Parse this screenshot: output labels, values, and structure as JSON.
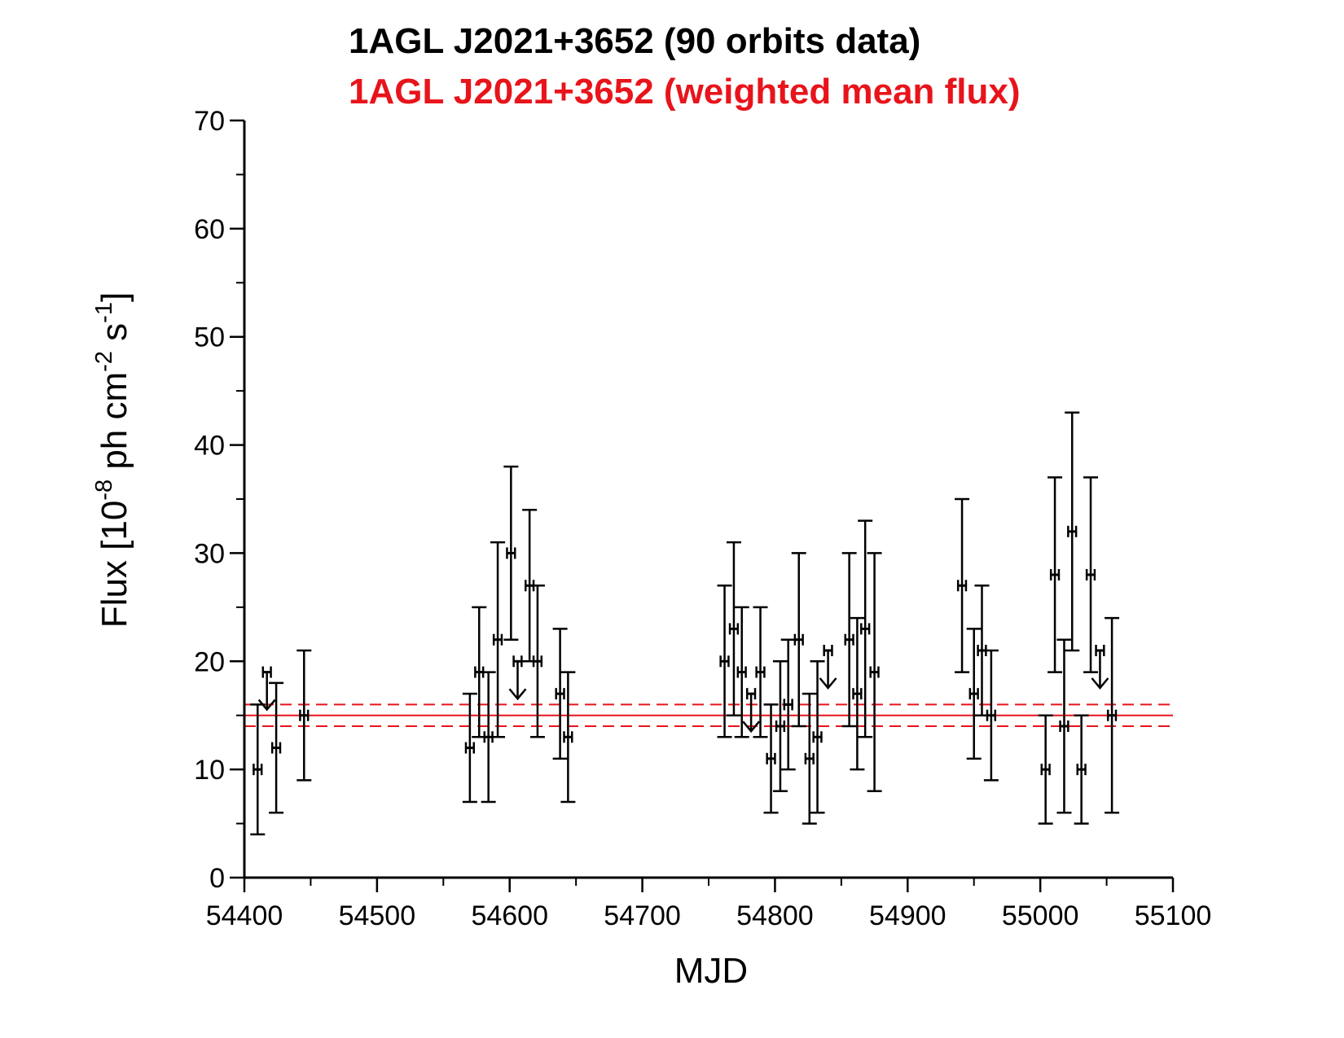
{
  "chart_data": {
    "type": "scatter",
    "title": "1AGL J2021+3652 (90 orbits data)",
    "subtitle": "1AGL J2021+3652 (weighted mean flux)",
    "xlabel": "MJD",
    "ylabel": {
      "prefix": "Flux [10",
      "exp1": "-8",
      "middle": " ph cm",
      "exp2": "-2",
      "middle2": " s",
      "exp3": "-1",
      "suffix": "]"
    },
    "xlim": [
      54400,
      55100
    ],
    "ylim": [
      0,
      70
    ],
    "x_ticks": [
      54400,
      54500,
      54600,
      54700,
      54800,
      54900,
      55000,
      55100
    ],
    "y_ticks": [
      0,
      10,
      20,
      30,
      40,
      50,
      60,
      70
    ],
    "colors": {
      "data": "#000000",
      "mean": "#e8141b",
      "title": "#000000",
      "subtitle": "#e8141b"
    },
    "mean_flux": {
      "value": 15,
      "lower": 14,
      "upper": 16
    },
    "series": [
      {
        "name": "1AGL J2021+3652 (90 orbits data)",
        "points": [
          {
            "x": 54410,
            "y": 10,
            "ylo": 4,
            "yhi": 16,
            "xerr": 3
          },
          {
            "x": 54424,
            "y": 12,
            "ylo": 6,
            "yhi": 18,
            "xerr": 3
          },
          {
            "x": 54445,
            "y": 15,
            "ylo": 9,
            "yhi": 21,
            "xerr": 3
          },
          {
            "x": 54570,
            "y": 12,
            "ylo": 7,
            "yhi": 17,
            "xerr": 3
          },
          {
            "x": 54577,
            "y": 19,
            "ylo": 13,
            "yhi": 25,
            "xerr": 3
          },
          {
            "x": 54584,
            "y": 13,
            "ylo": 7,
            "yhi": 19,
            "xerr": 3
          },
          {
            "x": 54591,
            "y": 22,
            "ylo": 13,
            "yhi": 31,
            "xerr": 3
          },
          {
            "x": 54601,
            "y": 30,
            "ylo": 22,
            "yhi": 38,
            "xerr": 3
          },
          {
            "x": 54615,
            "y": 27,
            "ylo": 20,
            "yhi": 34,
            "xerr": 3
          },
          {
            "x": 54621,
            "y": 20,
            "ylo": 13,
            "yhi": 27,
            "xerr": 3
          },
          {
            "x": 54638,
            "y": 17,
            "ylo": 11,
            "yhi": 23,
            "xerr": 3
          },
          {
            "x": 54644,
            "y": 13,
            "ylo": 7,
            "yhi": 19,
            "xerr": 3
          },
          {
            "x": 54762,
            "y": 20,
            "ylo": 13,
            "yhi": 27,
            "xerr": 3
          },
          {
            "x": 54769,
            "y": 23,
            "ylo": 15,
            "yhi": 31,
            "xerr": 3
          },
          {
            "x": 54775,
            "y": 19,
            "ylo": 13,
            "yhi": 25,
            "xerr": 3
          },
          {
            "x": 54789,
            "y": 19,
            "ylo": 13,
            "yhi": 25,
            "xerr": 3
          },
          {
            "x": 54797,
            "y": 11,
            "ylo": 6,
            "yhi": 16,
            "xerr": 3
          },
          {
            "x": 54804,
            "y": 14,
            "ylo": 8,
            "yhi": 20,
            "xerr": 3
          },
          {
            "x": 54810,
            "y": 16,
            "ylo": 10,
            "yhi": 22,
            "xerr": 3
          },
          {
            "x": 54818,
            "y": 22,
            "ylo": 14,
            "yhi": 30,
            "xerr": 3
          },
          {
            "x": 54826,
            "y": 11,
            "ylo": 5,
            "yhi": 17,
            "xerr": 3
          },
          {
            "x": 54832,
            "y": 13,
            "ylo": 6,
            "yhi": 20,
            "xerr": 3
          },
          {
            "x": 54856,
            "y": 22,
            "ylo": 14,
            "yhi": 30,
            "xerr": 3
          },
          {
            "x": 54862,
            "y": 17,
            "ylo": 10,
            "yhi": 24,
            "xerr": 3
          },
          {
            "x": 54868,
            "y": 23,
            "ylo": 13,
            "yhi": 33,
            "xerr": 3
          },
          {
            "x": 54875,
            "y": 19,
            "ylo": 8,
            "yhi": 30,
            "xerr": 3
          },
          {
            "x": 54941,
            "y": 27,
            "ylo": 19,
            "yhi": 35,
            "xerr": 3
          },
          {
            "x": 54950,
            "y": 17,
            "ylo": 11,
            "yhi": 23,
            "xerr": 3
          },
          {
            "x": 54956,
            "y": 21,
            "ylo": 15,
            "yhi": 27,
            "xerr": 3
          },
          {
            "x": 54963,
            "y": 15,
            "ylo": 9,
            "yhi": 21,
            "xerr": 3
          },
          {
            "x": 55004,
            "y": 10,
            "ylo": 5,
            "yhi": 15,
            "xerr": 3
          },
          {
            "x": 55011,
            "y": 28,
            "ylo": 19,
            "yhi": 37,
            "xerr": 3
          },
          {
            "x": 55018,
            "y": 14,
            "ylo": 6,
            "yhi": 22,
            "xerr": 3
          },
          {
            "x": 55024,
            "y": 32,
            "ylo": 21,
            "yhi": 43,
            "xerr": 3
          },
          {
            "x": 55031,
            "y": 10,
            "ylo": 5,
            "yhi": 15,
            "xerr": 3
          },
          {
            "x": 55038,
            "y": 28,
            "ylo": 19,
            "yhi": 37,
            "xerr": 3
          },
          {
            "x": 55054,
            "y": 15,
            "ylo": 6,
            "yhi": 24,
            "xerr": 3
          }
        ]
      },
      {
        "name": "upper limits",
        "upper_limits": [
          {
            "x": 54417,
            "y": 19,
            "xerr": 3
          },
          {
            "x": 54606,
            "y": 20,
            "xerr": 3
          },
          {
            "x": 54782,
            "y": 17,
            "xerr": 3
          },
          {
            "x": 54840,
            "y": 21,
            "xerr": 3
          },
          {
            "x": 55045,
            "y": 21,
            "xerr": 3
          }
        ]
      }
    ]
  }
}
